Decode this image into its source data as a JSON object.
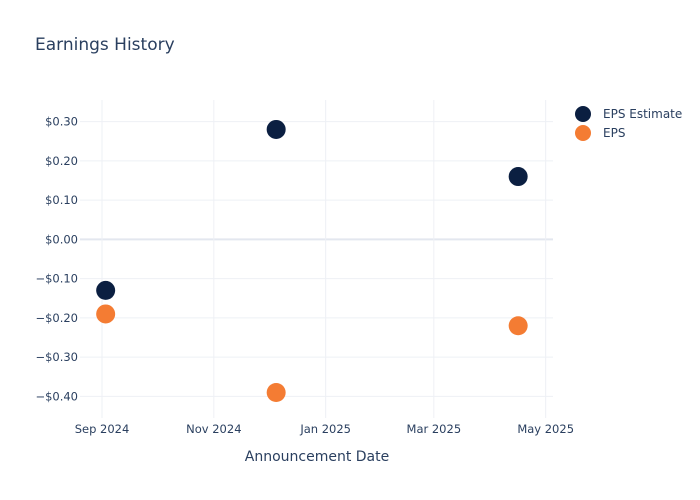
{
  "chart_data": {
    "type": "scatter",
    "title": "Earnings History",
    "xlabel": "Announcement Date",
    "ylabel": "",
    "x_ticks": [
      {
        "date": "2024-09-01",
        "label": "Sep 2024"
      },
      {
        "date": "2024-11-01",
        "label": "Nov 2024"
      },
      {
        "date": "2025-01-01",
        "label": "Jan 2025"
      },
      {
        "date": "2025-03-01",
        "label": "Mar 2025"
      },
      {
        "date": "2025-05-01",
        "label": "May 2025"
      }
    ],
    "xlim": [
      "2024-08-20",
      "2025-05-05"
    ],
    "y_ticks": [
      {
        "value": 0.3,
        "label": "$0.30"
      },
      {
        "value": 0.2,
        "label": "$0.20"
      },
      {
        "value": 0.1,
        "label": "$0.10"
      },
      {
        "value": 0.0,
        "label": "$0.00"
      },
      {
        "value": -0.1,
        "label": "−$0.10"
      },
      {
        "value": -0.2,
        "label": "−$0.20"
      },
      {
        "value": -0.3,
        "label": "−$0.30"
      },
      {
        "value": -0.4,
        "label": "−$0.40"
      }
    ],
    "ylim": [
      -0.455,
      0.355
    ],
    "grid": true,
    "legend_position": "top-right",
    "series": [
      {
        "name": "EPS Estimate",
        "color": "#0b1f41",
        "points": [
          {
            "x": "2024-09-03",
            "y": -0.13
          },
          {
            "x": "2024-12-05",
            "y": 0.28
          },
          {
            "x": "2025-04-16",
            "y": 0.16
          }
        ]
      },
      {
        "name": "EPS",
        "color": "#f47c33",
        "points": [
          {
            "x": "2024-09-03",
            "y": -0.19
          },
          {
            "x": "2024-12-05",
            "y": -0.39
          },
          {
            "x": "2025-04-16",
            "y": -0.22
          }
        ]
      }
    ]
  }
}
